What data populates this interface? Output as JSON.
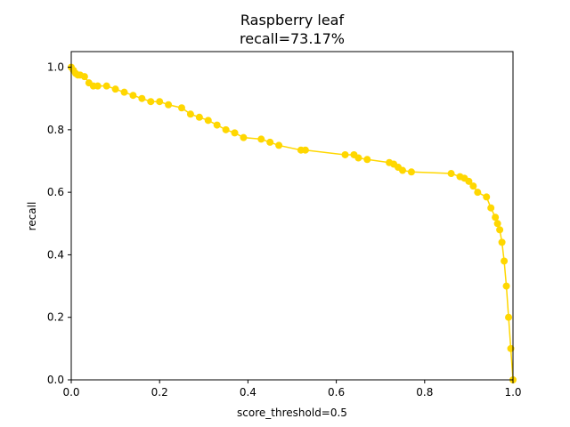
{
  "chart_data": {
    "type": "line",
    "title": "Raspberry leaf",
    "subtitle": "recall=73.17%",
    "xlabel": "score_threshold=0.5",
    "ylabel": "recall",
    "xlim": [
      0.0,
      1.0
    ],
    "ylim": [
      0.0,
      1.05
    ],
    "xticks": [
      "0.0",
      "0.2",
      "0.4",
      "0.6",
      "0.8",
      "1.0"
    ],
    "yticks": [
      "0.0",
      "0.2",
      "0.4",
      "0.6",
      "0.8",
      "1.0"
    ],
    "grid": false,
    "color": "#FFD700",
    "series": [
      {
        "x": [
          0.0,
          0.005,
          0.01,
          0.015,
          0.02,
          0.03,
          0.04,
          0.05,
          0.06,
          0.08,
          0.1,
          0.12,
          0.14,
          0.16,
          0.18,
          0.2,
          0.22,
          0.25,
          0.27,
          0.29,
          0.31,
          0.33,
          0.35,
          0.37,
          0.39,
          0.43,
          0.45,
          0.47,
          0.52,
          0.53,
          0.62,
          0.64,
          0.65,
          0.67,
          0.72,
          0.73,
          0.74,
          0.75,
          0.77,
          0.86,
          0.88,
          0.89,
          0.9,
          0.91,
          0.92,
          0.94,
          0.95,
          0.96,
          0.965,
          0.97,
          0.975,
          0.98,
          0.985,
          0.99,
          0.995,
          1.0
        ],
        "y": [
          1.0,
          0.99,
          0.98,
          0.975,
          0.975,
          0.97,
          0.95,
          0.94,
          0.94,
          0.94,
          0.93,
          0.92,
          0.91,
          0.9,
          0.89,
          0.89,
          0.88,
          0.87,
          0.85,
          0.84,
          0.83,
          0.815,
          0.8,
          0.79,
          0.775,
          0.77,
          0.76,
          0.75,
          0.735,
          0.735,
          0.72,
          0.72,
          0.71,
          0.705,
          0.695,
          0.69,
          0.68,
          0.67,
          0.665,
          0.66,
          0.65,
          0.645,
          0.635,
          0.62,
          0.6,
          0.585,
          0.55,
          0.52,
          0.5,
          0.48,
          0.44,
          0.38,
          0.3,
          0.2,
          0.1,
          0.0
        ]
      }
    ]
  }
}
